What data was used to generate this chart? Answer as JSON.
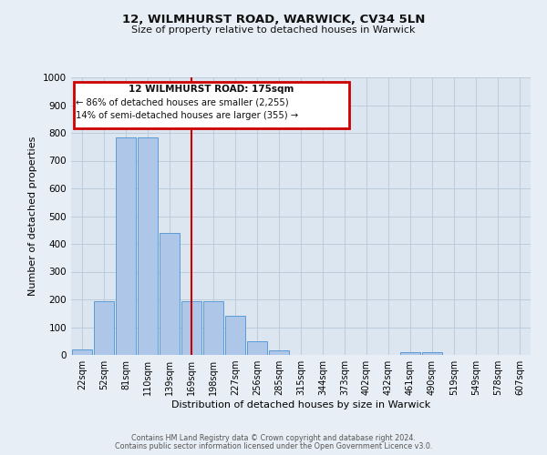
{
  "title_line1": "12, WILMHURST ROAD, WARWICK, CV34 5LN",
  "title_line2": "Size of property relative to detached houses in Warwick",
  "xlabel": "Distribution of detached houses by size in Warwick",
  "ylabel": "Number of detached properties",
  "bar_labels": [
    "22sqm",
    "52sqm",
    "81sqm",
    "110sqm",
    "139sqm",
    "169sqm",
    "198sqm",
    "227sqm",
    "256sqm",
    "285sqm",
    "315sqm",
    "344sqm",
    "373sqm",
    "402sqm",
    "432sqm",
    "461sqm",
    "490sqm",
    "519sqm",
    "549sqm",
    "578sqm",
    "607sqm"
  ],
  "bar_values": [
    20,
    195,
    785,
    785,
    440,
    195,
    195,
    140,
    50,
    15,
    0,
    0,
    0,
    0,
    0,
    10,
    10,
    0,
    0,
    0,
    0
  ],
  "bar_color": "#aec6e8",
  "bar_edge_color": "#5b9bd5",
  "vline_x": 5.0,
  "vline_color": "#cc0000",
  "ylim": [
    0,
    1000
  ],
  "yticks": [
    0,
    100,
    200,
    300,
    400,
    500,
    600,
    700,
    800,
    900,
    1000
  ],
  "annotation_title": "12 WILMHURST ROAD: 175sqm",
  "annotation_line1": "← 86% of detached houses are smaller (2,255)",
  "annotation_line2": "14% of semi-detached houses are larger (355) →",
  "annotation_box_color": "#cc0000",
  "footer_line1": "Contains HM Land Registry data © Crown copyright and database right 2024.",
  "footer_line2": "Contains public sector information licensed under the Open Government Licence v3.0.",
  "background_color": "#e8eef5",
  "plot_bg_color": "#dce6f0",
  "fig_width": 6.0,
  "fig_height": 5.0,
  "dpi": 100
}
